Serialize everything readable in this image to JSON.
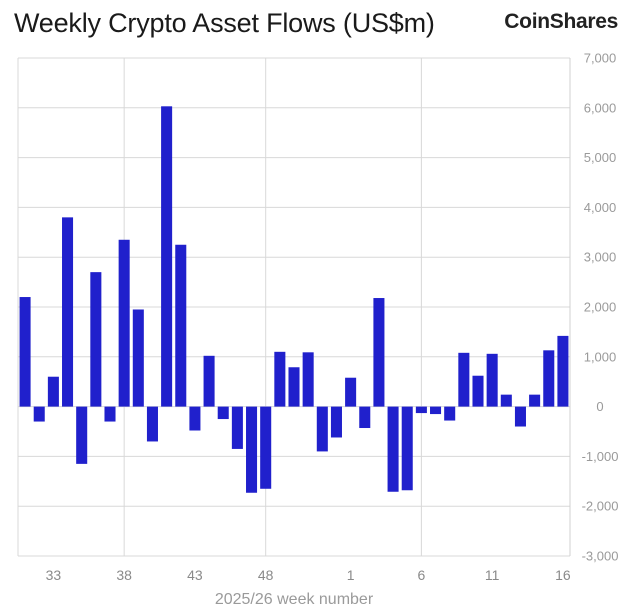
{
  "header": {
    "title": "Weekly Crypto Asset Flows (US$m)",
    "brand": "CoinShares"
  },
  "chart_data": {
    "type": "bar",
    "title": "Weekly Crypto Asset Flows (US$m)",
    "xlabel": "2025/26 week number",
    "ylabel": "",
    "ylim": [
      -3000,
      7000
    ],
    "y_ticks": [
      7000,
      6000,
      5000,
      4000,
      3000,
      2000,
      1000,
      0,
      -1000,
      -2000,
      -3000
    ],
    "y_tick_labels": [
      "7,000",
      "6,000",
      "5,000",
      "4,000",
      "3,000",
      "2,000",
      "1,000",
      "0",
      "-1,000",
      "-2,000",
      "-3,000"
    ],
    "y_axis_position": "right",
    "x_tick_labels": [
      "33",
      "38",
      "43",
      "48",
      "1",
      "6",
      "11",
      "16"
    ],
    "x_tick_label_positions": [
      "33",
      "38",
      "43",
      "48",
      "1",
      "6",
      "11",
      "16"
    ],
    "x_gridline_positions": [
      "38",
      "48",
      "6"
    ],
    "bar_color": "#2020cc",
    "grid": true,
    "categories": [
      "31",
      "32",
      "33",
      "34",
      "35",
      "36",
      "37",
      "38",
      "39",
      "40",
      "41",
      "42",
      "43",
      "44",
      "45",
      "46",
      "47",
      "48",
      "49",
      "50",
      "51",
      "52",
      "53",
      "1",
      "2",
      "3",
      "4",
      "5",
      "6",
      "7",
      "8",
      "9",
      "10",
      "11",
      "12",
      "13",
      "14",
      "15",
      "16"
    ],
    "values": [
      2200,
      -300,
      600,
      3800,
      -1150,
      2700,
      -300,
      3350,
      1950,
      -700,
      6030,
      3250,
      -480,
      1020,
      -250,
      -850,
      -1730,
      -1650,
      1100,
      790,
      1090,
      -900,
      -620,
      580,
      -430,
      2180,
      -1710,
      -1680,
      -130,
      -150,
      -280,
      1080,
      620,
      1060,
      240,
      -400,
      240,
      1130,
      1420
    ]
  }
}
